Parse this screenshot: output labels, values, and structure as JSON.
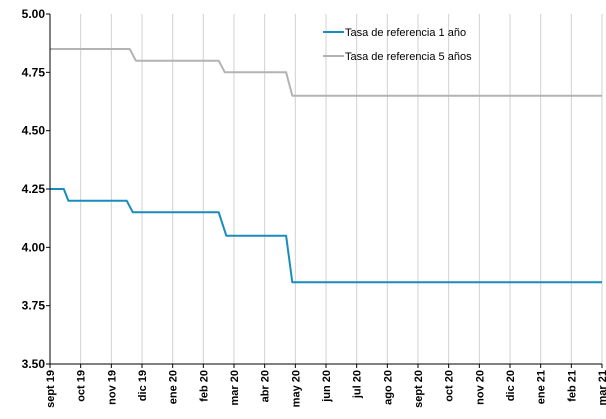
{
  "chart_data": {
    "type": "line",
    "categories": [
      "sept 19",
      "oct 19",
      "nov 19",
      "dic 19",
      "ene 20",
      "feb 20",
      "mar 20",
      "abr 20",
      "may 20",
      "jun 20",
      "jul 20",
      "ago 20",
      "sept 20",
      "oct 20",
      "nov 20",
      "dic 20",
      "ene 21",
      "feb 21",
      "mar 21"
    ],
    "ylim": [
      3.5,
      5.0
    ],
    "yticks": [
      "3.50",
      "3.75",
      "4.00",
      "4.25",
      "4.50",
      "4.75",
      "5.00"
    ],
    "grid": "vertical",
    "legend_position": "top-right",
    "series": [
      {
        "name": "Tasa de referencia 1 año",
        "color": "#1a8bbf",
        "points": [
          [
            0,
            4.25
          ],
          [
            0.45,
            4.25
          ],
          [
            0.6,
            4.2
          ],
          [
            2.5,
            4.2
          ],
          [
            2.7,
            4.15
          ],
          [
            5.5,
            4.15
          ],
          [
            5.75,
            4.05
          ],
          [
            7.7,
            4.05
          ],
          [
            7.9,
            3.85
          ],
          [
            18,
            3.85
          ]
        ]
      },
      {
        "name": "Tasa de referencia 5 años",
        "color": "#b3b3b3",
        "points": [
          [
            0,
            4.85
          ],
          [
            2.6,
            4.85
          ],
          [
            2.8,
            4.8
          ],
          [
            5.5,
            4.8
          ],
          [
            5.7,
            4.75
          ],
          [
            7.7,
            4.75
          ],
          [
            7.9,
            4.65
          ],
          [
            18,
            4.65
          ]
        ]
      }
    ]
  }
}
